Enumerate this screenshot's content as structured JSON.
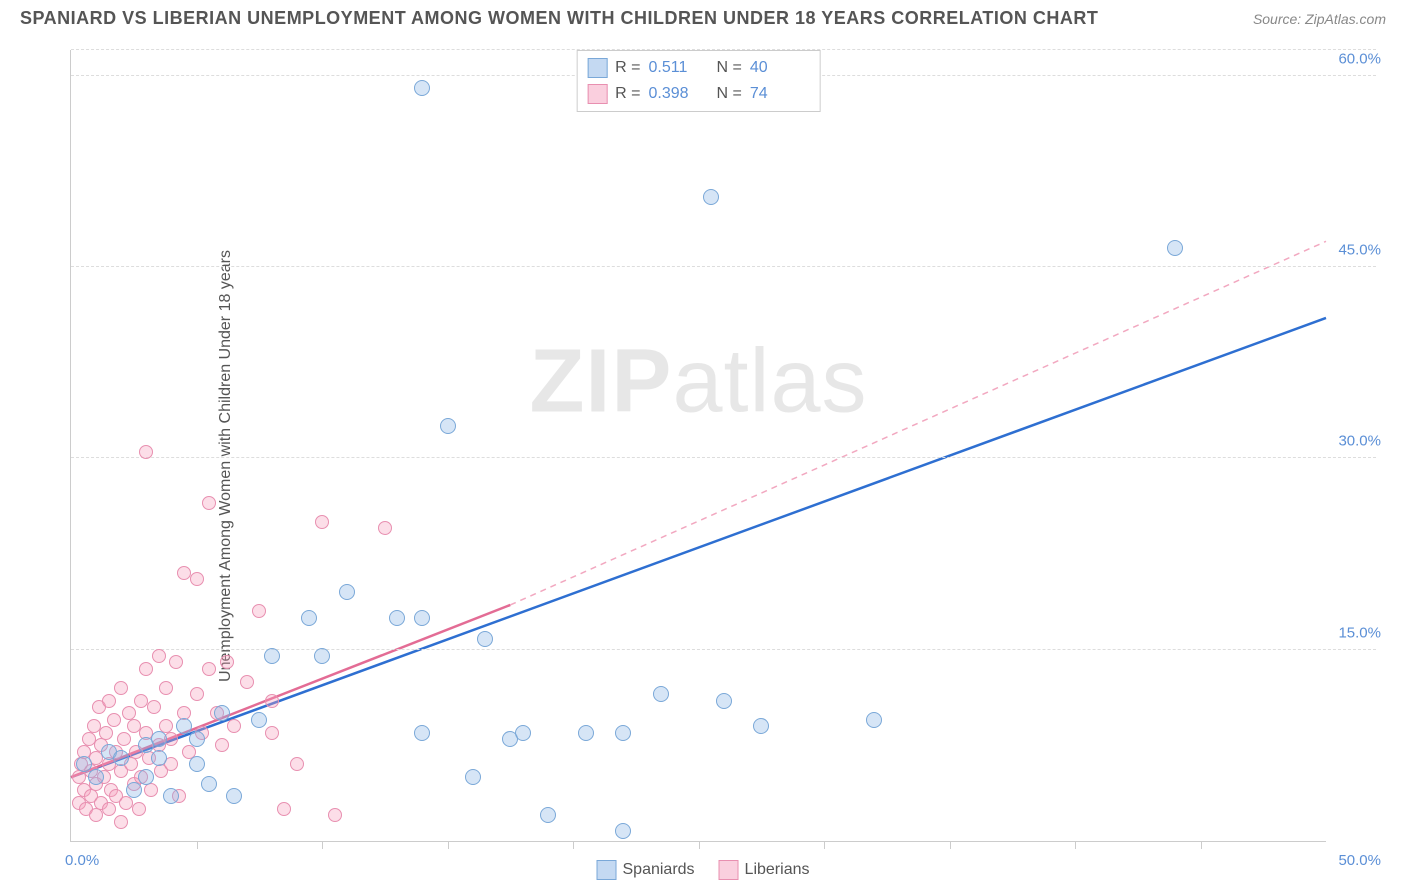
{
  "header": {
    "title": "SPANIARD VS LIBERIAN UNEMPLOYMENT AMONG WOMEN WITH CHILDREN UNDER 18 YEARS CORRELATION CHART",
    "source": "Source: ZipAtlas.com"
  },
  "chart": {
    "type": "scatter",
    "y_axis_label": "Unemployment Among Women with Children Under 18 years",
    "watermark": {
      "part1": "ZIP",
      "part2": "atlas"
    },
    "background_color": "#ffffff",
    "grid_color": "#dddddd",
    "axis_color": "#cccccc",
    "tick_label_color": "#5b8fd6",
    "xlim": [
      0,
      50
    ],
    "ylim": [
      0,
      62
    ],
    "y_ticks": [
      15.0,
      30.0,
      45.0,
      60.0
    ],
    "y_tick_labels": [
      "15.0%",
      "30.0%",
      "45.0%",
      "60.0%"
    ],
    "x_ticks_minor": [
      5,
      10,
      15,
      20,
      25,
      30,
      35,
      40,
      45
    ],
    "x_tick_labels": [
      {
        "pos": 0,
        "text": "0.0%"
      },
      {
        "pos": 50,
        "text": "50.0%"
      }
    ],
    "series": [
      {
        "name": "Spaniards",
        "color_fill": "rgba(138,180,230,0.35)",
        "color_stroke": "#7aa8d8",
        "marker_size": 16,
        "R": "0.511",
        "N": "40",
        "trend": {
          "x1": 0,
          "y1": 5,
          "x2": 50,
          "y2": 41,
          "stroke": "#2e6fd1",
          "width": 2.5,
          "dash": "none"
        },
        "trend_extension": null,
        "points": [
          [
            0.5,
            6
          ],
          [
            1,
            5
          ],
          [
            1.5,
            7
          ],
          [
            2,
            6.5
          ],
          [
            2.5,
            4
          ],
          [
            3,
            7.5
          ],
          [
            3,
            5
          ],
          [
            3.5,
            8
          ],
          [
            4,
            3.5
          ],
          [
            4.5,
            9
          ],
          [
            5,
            6
          ],
          [
            5.5,
            4.5
          ],
          [
            6,
            10
          ],
          [
            6.5,
            3.5
          ],
          [
            7.5,
            9.5
          ],
          [
            8,
            14.5
          ],
          [
            9.5,
            17.5
          ],
          [
            10,
            14.5
          ],
          [
            11,
            19.5
          ],
          [
            13,
            17.5
          ],
          [
            14,
            8.5
          ],
          [
            14,
            17.5
          ],
          [
            15,
            32.5
          ],
          [
            16,
            5
          ],
          [
            16.5,
            15.8
          ],
          [
            17.5,
            8
          ],
          [
            18,
            8.5
          ],
          [
            19,
            2
          ],
          [
            20.5,
            8.5
          ],
          [
            22,
            8.5
          ],
          [
            23.5,
            11.5
          ],
          [
            25.5,
            50.5
          ],
          [
            26,
            11
          ],
          [
            27.5,
            9
          ],
          [
            32,
            9.5
          ],
          [
            14,
            59
          ],
          [
            22,
            0.8
          ],
          [
            44,
            46.5
          ],
          [
            3.5,
            6.5
          ],
          [
            5,
            8
          ]
        ]
      },
      {
        "name": "Liberians",
        "color_fill": "rgba(245,160,190,0.35)",
        "color_stroke": "#e88fb0",
        "marker_size": 14,
        "R": "0.398",
        "N": "74",
        "trend": {
          "x1": 0,
          "y1": 5,
          "x2": 17.5,
          "y2": 18.5,
          "stroke": "#e36c95",
          "width": 2.5,
          "dash": "none"
        },
        "trend_extension": {
          "x1": 17.5,
          "y1": 18.5,
          "x2": 50,
          "y2": 47,
          "stroke": "#f2a8c0",
          "width": 1.5,
          "dash": "6,5"
        },
        "points": [
          [
            0.3,
            3
          ],
          [
            0.3,
            5
          ],
          [
            0.4,
            6
          ],
          [
            0.5,
            4
          ],
          [
            0.5,
            7
          ],
          [
            0.6,
            2.5
          ],
          [
            0.7,
            8
          ],
          [
            0.8,
            3.5
          ],
          [
            0.8,
            5.5
          ],
          [
            0.9,
            9
          ],
          [
            1,
            2
          ],
          [
            1,
            4.5
          ],
          [
            1,
            6.5
          ],
          [
            1.1,
            10.5
          ],
          [
            1.2,
            3
          ],
          [
            1.2,
            7.5
          ],
          [
            1.3,
            5
          ],
          [
            1.4,
            8.5
          ],
          [
            1.5,
            2.5
          ],
          [
            1.5,
            6
          ],
          [
            1.5,
            11
          ],
          [
            1.6,
            4
          ],
          [
            1.7,
            9.5
          ],
          [
            1.8,
            3.5
          ],
          [
            1.8,
            7
          ],
          [
            2,
            5.5
          ],
          [
            2,
            12
          ],
          [
            2.1,
            8
          ],
          [
            2.2,
            3
          ],
          [
            2.3,
            10
          ],
          [
            2.4,
            6
          ],
          [
            2.5,
            4.5
          ],
          [
            2.5,
            9
          ],
          [
            2.6,
            7
          ],
          [
            2.7,
            2.5
          ],
          [
            2.8,
            11
          ],
          [
            2.8,
            5
          ],
          [
            3,
            8.5
          ],
          [
            3,
            13.5
          ],
          [
            3.1,
            6.5
          ],
          [
            3.2,
            4
          ],
          [
            3.3,
            10.5
          ],
          [
            3.5,
            7.5
          ],
          [
            3.5,
            14.5
          ],
          [
            3.6,
            5.5
          ],
          [
            3.8,
            9
          ],
          [
            3.8,
            12
          ],
          [
            4,
            6
          ],
          [
            4,
            8
          ],
          [
            4.2,
            14
          ],
          [
            4.3,
            3.5
          ],
          [
            4.5,
            10
          ],
          [
            4.5,
            21
          ],
          [
            4.7,
            7
          ],
          [
            5,
            11.5
          ],
          [
            5,
            20.5
          ],
          [
            5.2,
            8.5
          ],
          [
            5.5,
            13.5
          ],
          [
            5.5,
            26.5
          ],
          [
            5.8,
            10
          ],
          [
            6,
            7.5
          ],
          [
            6.2,
            14
          ],
          [
            6.5,
            9
          ],
          [
            7,
            12.5
          ],
          [
            7.5,
            18
          ],
          [
            8,
            8.5
          ],
          [
            8,
            11
          ],
          [
            8.5,
            2.5
          ],
          [
            9,
            6
          ],
          [
            10,
            25
          ],
          [
            10.5,
            2
          ],
          [
            12.5,
            24.5
          ],
          [
            3,
            30.5
          ],
          [
            2,
            1.5
          ]
        ]
      }
    ],
    "legend_bottom": [
      {
        "swatch": "blue",
        "label": "Spaniards"
      },
      {
        "swatch": "pink",
        "label": "Liberians"
      }
    ]
  }
}
